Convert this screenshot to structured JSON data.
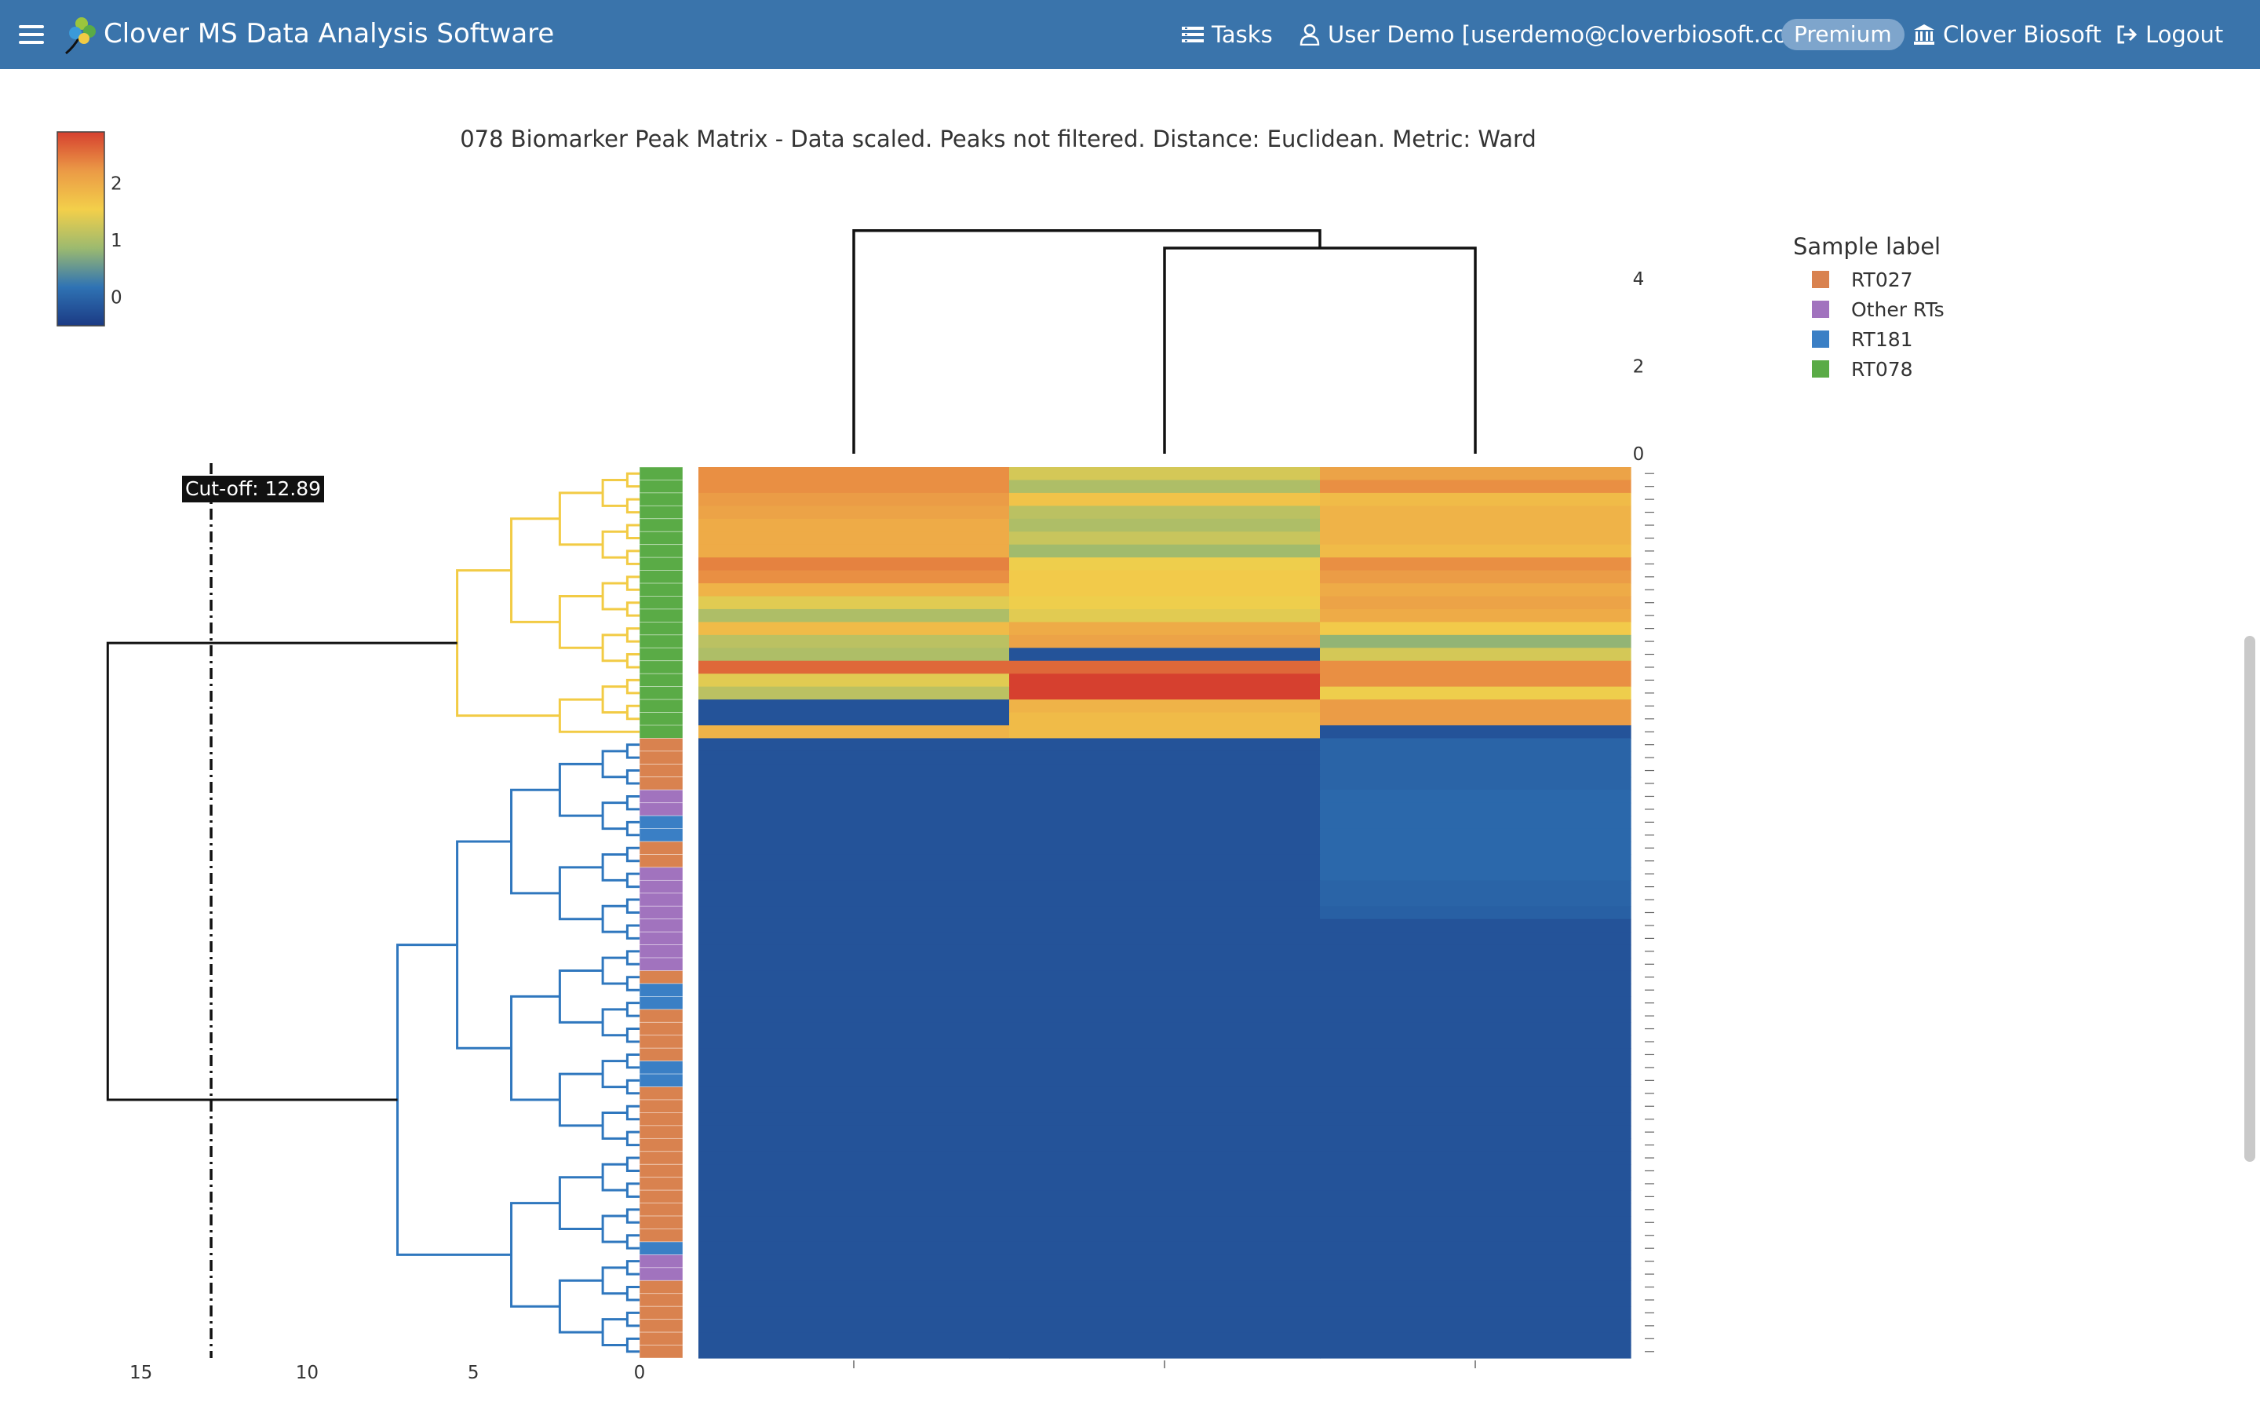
{
  "app": {
    "title": "Clover MS Data Analysis Software",
    "nav": {
      "tasks": "Tasks",
      "user": "User Demo [userdemo@cloverbiosoft.com]",
      "premium": "Premium",
      "company": "Clover Biosoft",
      "logout": "Logout"
    },
    "icons": [
      "hamburger-menu-icon",
      "clover-logo-icon",
      "tasks-list-icon",
      "user-icon",
      "institution-icon",
      "logout-icon"
    ]
  },
  "chart_data": {
    "type": "heatmap",
    "title": "078 Biomarker Peak Matrix - Data scaled. Peaks not filtered. Distance: Euclidean. Metric: Ward",
    "colorscale": {
      "tick_labels": [
        "0",
        "1",
        "2"
      ],
      "range": [
        -0.5,
        2.9
      ],
      "colors": [
        "#1b3a84",
        "#2f73b4",
        "#9cba6f",
        "#f3cf4a",
        "#eb9a46",
        "#d6402f"
      ]
    },
    "legend": {
      "title": "Sample label",
      "position": "top-right",
      "entries": [
        {
          "name": "RT027",
          "color": "#d9824f"
        },
        {
          "name": "Other RTs",
          "color": "#a173be"
        },
        {
          "name": "RT181",
          "color": "#3a7fc5"
        },
        {
          "name": "RT078",
          "color": "#5aab46"
        }
      ]
    },
    "row_dendrogram": {
      "x_tick_labels": [
        "15",
        "10",
        "5",
        "0"
      ],
      "x_range": [
        0,
        18
      ],
      "cutoff": 12.89,
      "cutoff_label": "Cut-off: 12.89",
      "clusters": [
        {
          "label": "RT078",
          "color": "#f2cb45",
          "rows": 21
        },
        {
          "label": "other",
          "color": "#2f77be",
          "rows": 48
        }
      ],
      "merge_heights": [
        0,
        0.8,
        2.1,
        3.6,
        8.0,
        16.0
      ]
    },
    "col_dendrogram": {
      "y_tick_labels": [
        "0",
        "2",
        "4"
      ],
      "y_range": [
        0,
        4.8
      ],
      "merges": [
        {
          "left": 1,
          "right": 2,
          "height": 4.7
        },
        {
          "left": 0,
          "right": 3,
          "height": 5.1
        }
      ]
    },
    "n_rows": 69,
    "n_cols": 3,
    "row_labels": [
      "RT078",
      "RT078",
      "RT078",
      "RT078",
      "RT078",
      "RT078",
      "RT078",
      "RT078",
      "RT078",
      "RT078",
      "RT078",
      "RT078",
      "RT078",
      "RT078",
      "RT078",
      "RT078",
      "RT078",
      "RT078",
      "RT078",
      "RT078",
      "RT078",
      "RT027",
      "RT027",
      "RT027",
      "RT027",
      "Other RTs",
      "Other RTs",
      "RT181",
      "RT181",
      "RT027",
      "RT027",
      "Other RTs",
      "Other RTs",
      "Other RTs",
      "Other RTs",
      "Other RTs",
      "Other RTs",
      "Other RTs",
      "Other RTs",
      "RT027",
      "RT181",
      "RT181",
      "RT027",
      "RT027",
      "RT027",
      "RT027",
      "RT181",
      "RT181",
      "RT027",
      "RT027",
      "RT027",
      "RT027",
      "RT027",
      "RT027",
      "RT027",
      "RT027",
      "RT027",
      "RT027",
      "RT027",
      "RT027",
      "RT181",
      "Other RTs",
      "Other RTs",
      "RT027",
      "RT027",
      "RT027",
      "RT027",
      "RT027",
      "RT027"
    ],
    "values": [
      [
        2.3,
        1.3,
        2.1
      ],
      [
        2.3,
        1.0,
        2.3
      ],
      [
        2.2,
        1.7,
        1.8
      ],
      [
        2.1,
        1.1,
        1.9
      ],
      [
        2.0,
        1.0,
        1.9
      ],
      [
        2.0,
        1.2,
        1.9
      ],
      [
        2.0,
        0.9,
        1.8
      ],
      [
        2.4,
        1.5,
        2.3
      ],
      [
        2.3,
        1.6,
        2.2
      ],
      [
        1.9,
        1.6,
        2.0
      ],
      [
        1.4,
        1.5,
        2.1
      ],
      [
        1.0,
        1.4,
        2.0
      ],
      [
        1.8,
        2.0,
        1.6
      ],
      [
        1.1,
        2.1,
        0.8
      ],
      [
        1.0,
        -0.2,
        1.3
      ],
      [
        2.6,
        2.6,
        2.3
      ],
      [
        1.4,
        2.9,
        2.3
      ],
      [
        1.1,
        2.9,
        1.5
      ],
      [
        -0.2,
        1.9,
        2.2
      ],
      [
        -0.2,
        1.8,
        2.2
      ],
      [
        1.9,
        1.8,
        -0.2
      ],
      [
        -0.2,
        -0.2,
        0.0
      ],
      [
        -0.2,
        -0.2,
        0.0
      ],
      [
        -0.2,
        -0.2,
        0.0
      ],
      [
        -0.2,
        -0.2,
        0.0
      ],
      [
        -0.2,
        -0.2,
        0.05
      ],
      [
        -0.2,
        -0.2,
        0.05
      ],
      [
        -0.2,
        -0.2,
        0.05
      ],
      [
        -0.2,
        -0.2,
        0.05
      ],
      [
        -0.2,
        -0.2,
        0.05
      ],
      [
        -0.2,
        -0.2,
        0.05
      ],
      [
        -0.2,
        -0.2,
        0.05
      ],
      [
        -0.2,
        -0.2,
        0.0
      ],
      [
        -0.2,
        -0.2,
        0.0
      ],
      [
        -0.2,
        -0.2,
        -0.05
      ],
      [
        -0.2,
        -0.2,
        -0.2
      ],
      [
        -0.2,
        -0.2,
        -0.2
      ],
      [
        -0.2,
        -0.2,
        -0.2
      ],
      [
        -0.2,
        -0.2,
        -0.2
      ],
      [
        -0.2,
        -0.2,
        -0.2
      ],
      [
        -0.2,
        -0.2,
        -0.2
      ],
      [
        -0.2,
        -0.2,
        -0.2
      ],
      [
        -0.2,
        -0.2,
        -0.2
      ],
      [
        -0.2,
        -0.2,
        -0.2
      ],
      [
        -0.2,
        -0.2,
        -0.2
      ],
      [
        -0.2,
        -0.2,
        -0.2
      ],
      [
        -0.2,
        -0.2,
        -0.2
      ],
      [
        -0.2,
        -0.2,
        -0.2
      ],
      [
        -0.2,
        -0.2,
        -0.2
      ],
      [
        -0.2,
        -0.2,
        -0.2
      ],
      [
        -0.2,
        -0.2,
        -0.2
      ],
      [
        -0.2,
        -0.2,
        -0.2
      ],
      [
        -0.2,
        -0.2,
        -0.2
      ],
      [
        -0.2,
        -0.2,
        -0.2
      ],
      [
        -0.2,
        -0.2,
        -0.2
      ],
      [
        -0.2,
        -0.2,
        -0.2
      ],
      [
        -0.2,
        -0.2,
        -0.2
      ],
      [
        -0.2,
        -0.2,
        -0.2
      ],
      [
        -0.2,
        -0.2,
        -0.2
      ],
      [
        -0.2,
        -0.2,
        -0.2
      ],
      [
        -0.2,
        -0.2,
        -0.2
      ],
      [
        -0.2,
        -0.2,
        -0.2
      ],
      [
        -0.2,
        -0.2,
        -0.2
      ],
      [
        -0.2,
        -0.2,
        -0.2
      ],
      [
        -0.2,
        -0.2,
        -0.2
      ],
      [
        -0.2,
        -0.2,
        -0.2
      ],
      [
        -0.2,
        -0.2,
        -0.2
      ],
      [
        -0.2,
        -0.2,
        -0.2
      ],
      [
        -0.2,
        -0.2,
        -0.2
      ]
    ]
  }
}
